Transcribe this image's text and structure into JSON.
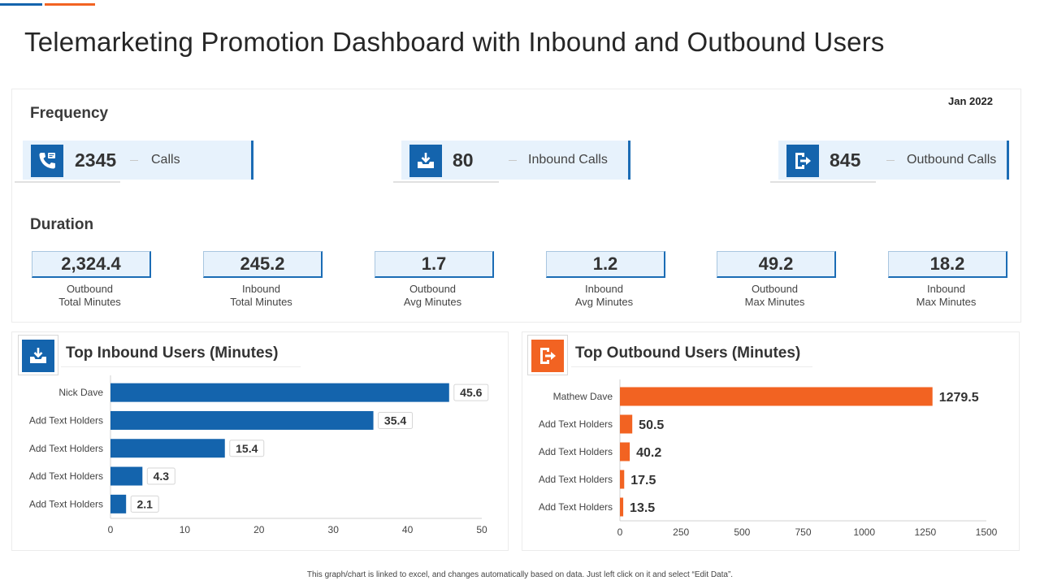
{
  "page": {
    "title": "Telemarketing Promotion Dashboard with Inbound and Outbound Users",
    "date": "Jan 2022"
  },
  "colors": {
    "blue": "#1464ad",
    "orange": "#f26322",
    "light_blue": "#e7f2fc"
  },
  "frequency": {
    "label": "Frequency",
    "cards": [
      {
        "value": "2345",
        "label": "Calls",
        "icon": "phone-icon"
      },
      {
        "value": "80",
        "label": "Inbound  Calls",
        "icon": "inbox-download-icon"
      },
      {
        "value": "845",
        "label": "Outbound  Calls",
        "icon": "export-icon"
      }
    ]
  },
  "duration": {
    "label": "Duration",
    "items": [
      {
        "value": "2,324.4",
        "line1": "Outbound",
        "line2": "Total Minutes"
      },
      {
        "value": "245.2",
        "line1": "Inbound",
        "line2": "Total Minutes"
      },
      {
        "value": "1.7",
        "line1": "Outbound",
        "line2": "Avg Minutes"
      },
      {
        "value": "1.2",
        "line1": "Inbound",
        "line2": "Avg Minutes"
      },
      {
        "value": "49.2",
        "line1": "Outbound",
        "line2": "Max Minutes"
      },
      {
        "value": "18.2",
        "line1": "Inbound",
        "line2": "Max Minutes"
      }
    ]
  },
  "chart_data": [
    {
      "type": "bar",
      "orientation": "horizontal",
      "title": "Top Inbound Users (Minutes)",
      "categories": [
        "Nick Dave",
        "Add Text Holders",
        "Add Text Holders",
        "Add Text Holders",
        "Add Text Holders"
      ],
      "values": [
        45.6,
        35.4,
        15.4,
        4.3,
        2.1
      ],
      "value_labels": [
        "45.6",
        "35.4",
        "15.4",
        "4.3",
        "2.1"
      ],
      "xlim": [
        0,
        50
      ],
      "ticks": [
        0,
        10,
        20,
        30,
        40,
        50
      ],
      "color": "#1464ad"
    },
    {
      "type": "bar",
      "orientation": "horizontal",
      "title": "Top Outbound Users (Minutes)",
      "categories": [
        "Mathew Dave",
        "Add Text Holders",
        "Add Text Holders",
        "Add Text Holders",
        "Add Text Holders"
      ],
      "values": [
        1279.5,
        50.5,
        40.2,
        17.5,
        13.5
      ],
      "value_labels": [
        "1279.5",
        "50.5",
        "40.2",
        "17.5",
        "13.5"
      ],
      "xlim": [
        0,
        1500
      ],
      "ticks": [
        0,
        250,
        500,
        750,
        1000,
        1250,
        1500
      ],
      "color": "#f26322"
    }
  ],
  "footer": {
    "text": "This graph/chart is linked to excel, and changes automatically based on data. Just left click on it and select “Edit Data”."
  }
}
